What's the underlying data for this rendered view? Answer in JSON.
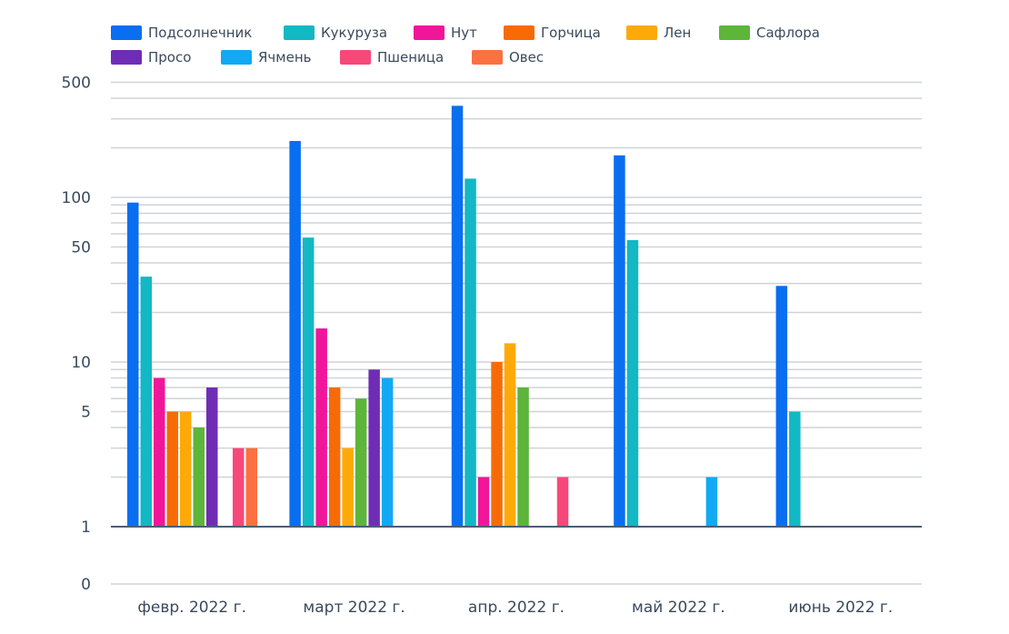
{
  "chart_data": {
    "type": "bar",
    "yscale": "log",
    "ytick_labels": [
      "0",
      "1",
      "5",
      "10",
      "50",
      "100",
      "500"
    ],
    "grid": true,
    "legend_position": "top-left",
    "categories": [
      "февр. 2022 г.",
      "март 2022 г.",
      "апр. 2022 г.",
      "май 2022 г.",
      "июнь 2022 г."
    ],
    "series": [
      {
        "name": "Подсолнечник",
        "color": "#0a6ef0",
        "values": [
          93,
          220,
          360,
          180,
          29
        ]
      },
      {
        "name": "Кукуруза",
        "color": "#12b8c4",
        "values": [
          33,
          57,
          130,
          55,
          5
        ]
      },
      {
        "name": "Нут",
        "color": "#f0169a",
        "values": [
          8,
          16,
          2,
          null,
          null
        ]
      },
      {
        "name": "Горчица",
        "color": "#f76b07",
        "values": [
          5,
          7,
          10,
          null,
          null
        ]
      },
      {
        "name": "Лен",
        "color": "#fdaa08",
        "values": [
          5,
          3,
          13,
          null,
          null
        ]
      },
      {
        "name": "Сафлора",
        "color": "#5db53a",
        "values": [
          4,
          6,
          7,
          null,
          null
        ]
      },
      {
        "name": "Просо",
        "color": "#6f2db5",
        "values": [
          7,
          9,
          null,
          null,
          null
        ]
      },
      {
        "name": "Ячмень",
        "color": "#12a9f2",
        "values": [
          null,
          8,
          null,
          2,
          null
        ]
      },
      {
        "name": "Пшеница",
        "color": "#f7487a",
        "values": [
          3,
          null,
          2,
          null,
          null
        ]
      },
      {
        "name": "Овес",
        "color": "#fb7141",
        "values": [
          3,
          null,
          null,
          null,
          null
        ]
      }
    ]
  }
}
